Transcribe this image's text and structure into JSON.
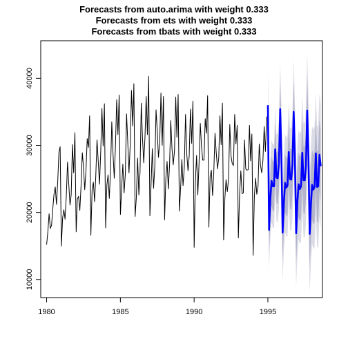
{
  "chart_data": {
    "type": "line",
    "title_lines": [
      "Forecasts from auto.arima with weight 0.333",
      "Forecasts from ets with weight 0.333",
      "Forecasts from tbats with weight 0.333"
    ],
    "xlabel": "",
    "ylabel": "",
    "xlim": [
      1979.6,
      1998.7
    ],
    "ylim": [
      7300,
      45600
    ],
    "x_ticks": [
      1980,
      1985,
      1990,
      1995
    ],
    "y_ticks": [
      10000,
      20000,
      30000,
      40000
    ],
    "grid": false,
    "legend": "none",
    "series": [
      {
        "role": "history",
        "color": "#000000",
        "x_start": 1980.0,
        "x_step": 0.0833333,
        "values": [
          15200,
          17100,
          19800,
          17600,
          18100,
          20500,
          22700,
          23800,
          21200,
          24600,
          28900,
          29800,
          15000,
          19200,
          20400,
          19000,
          22400,
          27500,
          24200,
          21100,
          22600,
          30100,
          25900,
          31900,
          17100,
          22000,
          22400,
          20300,
          24000,
          28900,
          26800,
          23400,
          26200,
          31000,
          29700,
          34400,
          16600,
          23400,
          24500,
          21600,
          25400,
          30800,
          27600,
          24200,
          29100,
          35500,
          29900,
          36200,
          17700,
          24100,
          25600,
          22100,
          26400,
          33500,
          28700,
          25100,
          29900,
          36800,
          31600,
          37500,
          19700,
          23400,
          27200,
          22900,
          25700,
          34700,
          30600,
          25900,
          30100,
          38200,
          32900,
          39200,
          19400,
          22300,
          28100,
          22600,
          26000,
          36300,
          31000,
          27400,
          31300,
          37300,
          31600,
          40300,
          19500,
          24500,
          29500,
          23600,
          26800,
          35300,
          32000,
          28200,
          30500,
          37800,
          30000,
          37300,
          18900,
          25100,
          27600,
          23500,
          27100,
          33700,
          29500,
          27100,
          29200,
          37200,
          31200,
          37600,
          20200,
          23700,
          27900,
          24000,
          26700,
          34600,
          28700,
          26200,
          28400,
          35400,
          30300,
          36600,
          14800,
          24500,
          28500,
          22600,
          27400,
          33300,
          29900,
          27800,
          27800,
          34000,
          31800,
          37400,
          17800,
          25300,
          26300,
          22500,
          25900,
          31800,
          28900,
          26500,
          28100,
          34400,
          30100,
          36300,
          15900,
          22200,
          24900,
          23100,
          25000,
          33100,
          28400,
          27300,
          27000,
          34600,
          30200,
          33000,
          16200,
          22700,
          26200,
          22800,
          22900,
          30800,
          26500,
          26300,
          26400,
          33000,
          27700,
          31700,
          13600,
          22500,
          25100,
          22700,
          23900,
          30200,
          27000,
          25900,
          27800,
          32800,
          29100,
          34300
        ]
      },
      {
        "role": "forecast",
        "color": "#0000ff",
        "x_start": 1995.0,
        "x_step": 0.0833333,
        "values": [
          36000,
          17400,
          22000,
          24700,
          23900,
          23900,
          29400,
          25200,
          25100,
          27300,
          35400,
          28900,
          17000,
          21400,
          24400,
          23700,
          24000,
          29000,
          25000,
          24900,
          27100,
          35000,
          28500,
          16900,
          21600,
          24200,
          23500,
          23900,
          28900,
          24800,
          24800,
          26900,
          35200,
          28400,
          16800,
          21200,
          24100,
          23400,
          23800,
          28800,
          23800,
          23900,
          28600,
          26900
        ],
        "pi80_halfwidth": [
          3600,
          3400,
          3500,
          3600,
          3700,
          3700,
          3800,
          3800,
          3900,
          4000,
          4100,
          4100,
          4200,
          4200,
          4300,
          4300,
          4400,
          4400,
          4500,
          4500,
          4600,
          4600,
          4700,
          4700,
          4800,
          4800,
          4800,
          4900,
          4900,
          5000,
          5000,
          5000,
          5100,
          5100,
          5100,
          5200,
          5200,
          5200,
          5300,
          5300,
          5300,
          5300,
          5400,
          5400
        ],
        "pi95_halfwidth": [
          6000,
          5800,
          5900,
          6100,
          6200,
          6300,
          6400,
          6500,
          6600,
          6800,
          7000,
          7000,
          7100,
          7200,
          7300,
          7400,
          7500,
          7500,
          7600,
          7700,
          7800,
          7900,
          8000,
          8000,
          8100,
          8200,
          8200,
          8300,
          8400,
          8500,
          8500,
          8600,
          8700,
          8700,
          8700,
          8800,
          8800,
          8900,
          9000,
          9000,
          9000,
          9100,
          9100,
          9200
        ],
        "pi80_color": "#b4b4cc",
        "pi95_color": "#dcdce6"
      }
    ]
  }
}
